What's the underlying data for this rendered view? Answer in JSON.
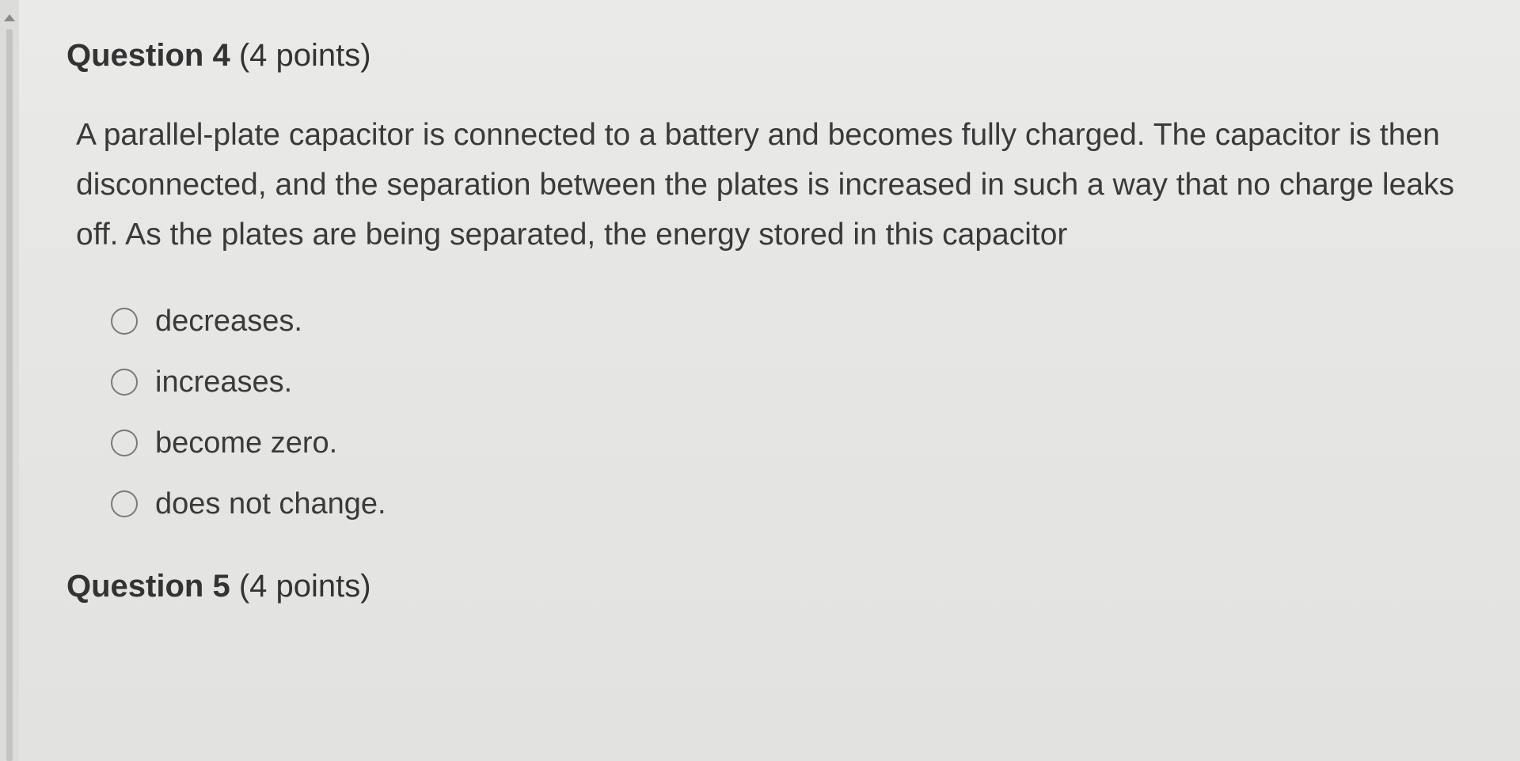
{
  "question4": {
    "label_prefix": "Question 4",
    "points_suffix": " (4 points)",
    "prompt": "A parallel-plate capacitor is connected to a battery and becomes fully charged. The capacitor is then disconnected, and the separation between the plates is increased in such a way that no charge leaks off. As the plates are being separated, the energy stored in this capacitor",
    "options": [
      "decreases.",
      "increases.",
      "become zero.",
      "does not change."
    ]
  },
  "question5": {
    "label_prefix": "Question 5",
    "points_suffix": " (4 points)"
  },
  "colors": {
    "background": "#e8e8e6",
    "text": "#3a3a3a",
    "radio_border": "#7a7a78",
    "gutter_bg": "#dcdcda",
    "sidebar_accent": "#c4c4c2"
  },
  "typography": {
    "heading_fontsize": 40,
    "body_fontsize": 39,
    "option_fontsize": 38,
    "line_height": 1.62
  }
}
